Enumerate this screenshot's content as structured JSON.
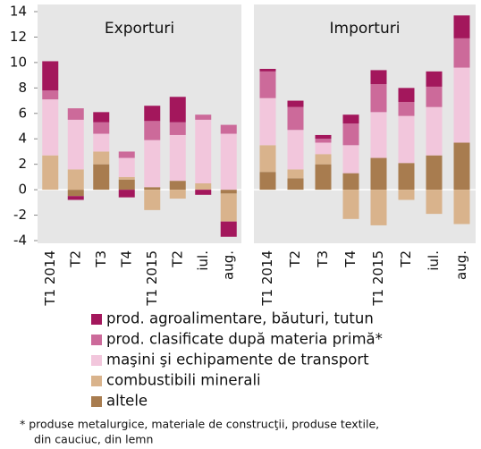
{
  "chart_data": {
    "type": "bar",
    "stacked": true,
    "ylim": [
      -4,
      14
    ],
    "yticks": [
      -4,
      -2,
      0,
      2,
      4,
      6,
      8,
      10,
      12,
      14
    ],
    "legend": [
      {
        "name": "altele",
        "color": "#a87c4f"
      },
      {
        "name": "combustibili minerali",
        "color": "#d9b38c"
      },
      {
        "name": "maşini şi echipamente de transport",
        "color": "#f2c6dc"
      },
      {
        "name": "prod. clasificate după materia primă*",
        "color": "#cc6a9a"
      },
      {
        "name": "prod. agroalimentare, băuturi, tutun",
        "color": "#a3175c"
      }
    ],
    "panels": [
      {
        "title": "Exporturi",
        "categories": [
          "T1 2014",
          "T2",
          "T3",
          "T4",
          "T1 2015",
          "T2",
          "iul.",
          "aug."
        ],
        "series": [
          {
            "values": [
              0,
              -0.5,
              2.0,
              0.8,
              0.2,
              0.7,
              0,
              -0.3
            ]
          },
          {
            "values": [
              2.7,
              1.6,
              1.0,
              0.2,
              -1.6,
              -0.7,
              0.5,
              -2.2
            ]
          },
          {
            "values": [
              4.4,
              3.9,
              1.4,
              1.5,
              3.7,
              3.6,
              5.0,
              4.4
            ]
          },
          {
            "values": [
              0.7,
              0.9,
              0.9,
              0.5,
              1.5,
              1.0,
              0.4,
              0.7
            ]
          },
          {
            "values": [
              2.3,
              -0.3,
              0.8,
              -0.6,
              1.2,
              2.0,
              -0.4,
              -1.2
            ]
          }
        ]
      },
      {
        "title": "Importuri",
        "categories": [
          "T1 2014",
          "T2",
          "T3",
          "T4",
          "T1 2015",
          "T2",
          "iul.",
          "aug."
        ],
        "series": [
          {
            "values": [
              1.4,
              0.9,
              2.0,
              1.3,
              2.5,
              2.1,
              2.7,
              3.7
            ]
          },
          {
            "values": [
              2.1,
              0.7,
              0.8,
              -2.3,
              -2.8,
              -0.8,
              -1.9,
              -2.7
            ]
          },
          {
            "values": [
              3.7,
              3.1,
              0.9,
              2.2,
              3.6,
              3.7,
              3.8,
              5.9
            ]
          },
          {
            "values": [
              2.1,
              1.8,
              0.3,
              1.7,
              2.2,
              1.1,
              1.6,
              2.3
            ]
          },
          {
            "values": [
              0.2,
              0.5,
              0.3,
              0.7,
              1.1,
              1.1,
              1.2,
              1.8
            ]
          }
        ]
      }
    ],
    "footnote": [
      "* produse metalurgice, materiale de construcţii, produse textile,",
      "din cauciuc, din lemn"
    ]
  }
}
